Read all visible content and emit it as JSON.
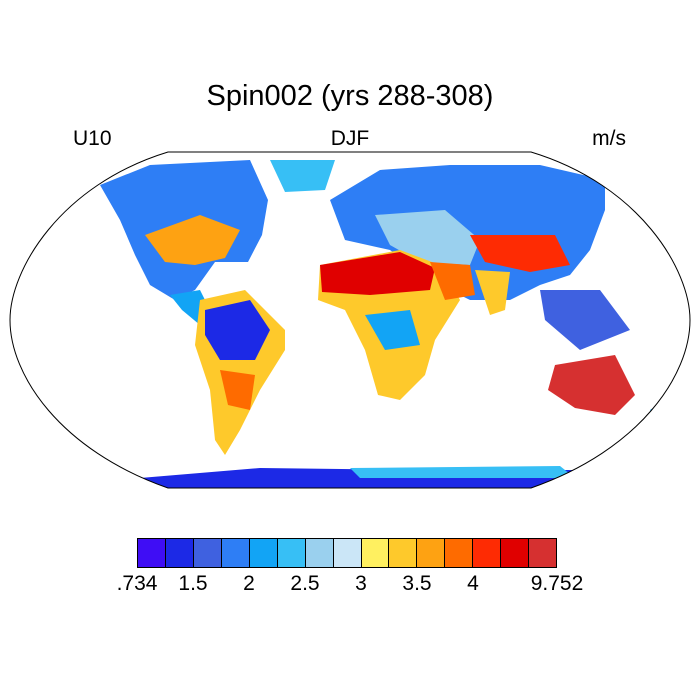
{
  "title": "Spin002 (yrs 288-308)",
  "left_label": "U10",
  "center_label": "DJF",
  "right_label": "m/s",
  "colorbar": {
    "colors": [
      "#3f0df5",
      "#1c29e6",
      "#3f61e0",
      "#2e7ef5",
      "#12a4f5",
      "#37bff5",
      "#9ad0ee",
      "#cbe6f7",
      "#fff060",
      "#fec92b",
      "#fea212",
      "#fe6b00",
      "#fe2b03",
      "#e00000",
      "#d63030"
    ],
    "labels": [
      ".734",
      "1.5",
      "2",
      "2.5",
      "3",
      "3.5",
      "4",
      "9.752"
    ],
    "label_boundaries": [
      0,
      2,
      4,
      6,
      8,
      10,
      12,
      15
    ]
  }
}
